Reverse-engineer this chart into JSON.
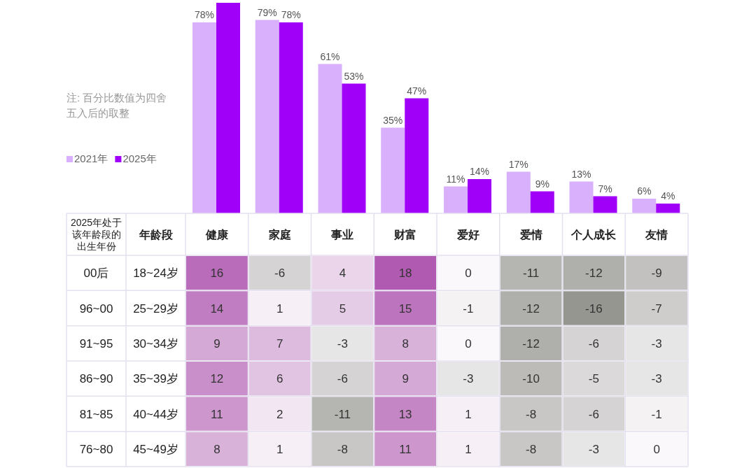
{
  "chart_data": [
    {
      "type": "bar",
      "categories": [
        null,
        null,
        null,
        null,
        null,
        null,
        null,
        null
      ],
      "series": [
        {
          "name": "2021年",
          "color": "#d8b0fb",
          "values": [
            78,
            79,
            61,
            35,
            11,
            17,
            13,
            6
          ],
          "value_labels": [
            "78%",
            "79%",
            "61%",
            "35%",
            "11%",
            "17%",
            "13%",
            "6%"
          ]
        },
        {
          "name": "2025年",
          "color": "#a000f8",
          "values": [
            86,
            78,
            53,
            47,
            14,
            9,
            7,
            4
          ],
          "value_labels": [
            null,
            "78%",
            "53%",
            "47%",
            "14%",
            "9%",
            "7%",
            "4%"
          ]
        }
      ],
      "legend": "left",
      "grid": false,
      "annotations": [
        "注: 百分比数值为四舍五入后的取整"
      ]
    },
    {
      "type": "heatmap",
      "categories": [
        "健康",
        "家庭",
        "事业",
        "财富",
        "爱好",
        "爱情",
        "个人成长",
        "友情"
      ],
      "ylabel": "2025年处于该年龄段的出生年份",
      "y2label": "年龄段",
      "y_categories": [
        "00后",
        "96~00",
        "91~95",
        "86~90",
        "81~85",
        "76~80"
      ],
      "y2_categories": [
        "18~24岁",
        "25~29岁",
        "30~34岁",
        "35~39岁",
        "40~44岁",
        "45~49岁"
      ],
      "cells": [
        [
          16,
          -6,
          4,
          18,
          0,
          -11,
          -12,
          -9
        ],
        [
          14,
          1,
          5,
          15,
          -1,
          -12,
          -16,
          -7
        ],
        [
          9,
          7,
          -3,
          8,
          0,
          -12,
          -6,
          -3
        ],
        [
          12,
          6,
          -6,
          9,
          -3,
          -10,
          -5,
          -3
        ],
        [
          11,
          2,
          -11,
          13,
          1,
          -8,
          -6,
          -1
        ],
        [
          8,
          1,
          -8,
          11,
          1,
          -8,
          -3,
          0
        ]
      ],
      "data_labels": true
    }
  ]
}
